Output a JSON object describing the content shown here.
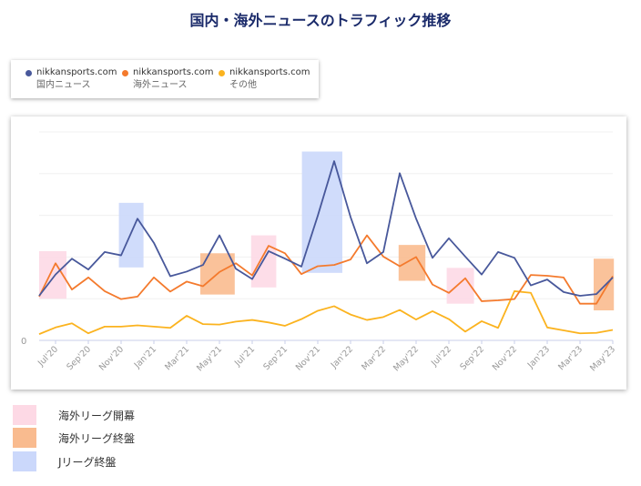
{
  "chart_data": {
    "type": "line",
    "title": "国内・海外ニュースのトラフィック推移",
    "x": [
      "2020-06",
      "2020-07",
      "2020-08",
      "2020-09",
      "2020-10",
      "2020-11",
      "2020-12",
      "2021-01",
      "2021-02",
      "2021-03",
      "2021-04",
      "2021-05",
      "2021-06",
      "2021-07",
      "2021-08",
      "2021-09",
      "2021-10",
      "2021-11",
      "2021-12",
      "2022-01",
      "2022-02",
      "2022-03",
      "2022-04",
      "2022-05",
      "2022-06",
      "2022-07",
      "2022-08",
      "2022-09",
      "2022-10",
      "2022-11",
      "2022-12",
      "2023-01",
      "2023-02",
      "2023-03",
      "2023-04",
      "2023-05"
    ],
    "tick_labels": [
      "Jul'20",
      "Sep'20",
      "Nov'20",
      "Jan'21",
      "Mar'21",
      "May'21",
      "Jul'21",
      "Sep'21",
      "Nov'21",
      "Jan'22",
      "Mar'22",
      "May'22",
      "Jul'22",
      "Sep'22",
      "Nov'22",
      "Jan'23",
      "Mar'23",
      "May'23"
    ],
    "y_tick_labels": [
      "0"
    ],
    "ylim": [
      0,
      5
    ],
    "grid": true,
    "series": [
      {
        "name": "nikkansports.com",
        "subname": "国内ニュース",
        "color": "#48589b",
        "values": [
          1.07,
          1.58,
          1.96,
          1.7,
          2.12,
          2.04,
          2.92,
          2.34,
          1.54,
          1.65,
          1.81,
          2.52,
          1.72,
          1.47,
          2.14,
          1.96,
          1.77,
          2.99,
          4.3,
          2.96,
          1.85,
          2.12,
          4.01,
          2.92,
          1.98,
          2.45,
          2.01,
          1.58,
          2.12,
          1.98,
          1.32,
          1.46,
          1.16,
          1.07,
          1.11,
          1.51
        ]
      },
      {
        "name": "nikkansports.com",
        "subname": "海外ニュース",
        "color": "#f47a2d",
        "values": [
          1.05,
          1.85,
          1.22,
          1.51,
          1.18,
          0.99,
          1.05,
          1.51,
          1.17,
          1.41,
          1.3,
          1.64,
          1.85,
          1.56,
          2.27,
          2.09,
          1.59,
          1.78,
          1.81,
          1.94,
          2.52,
          2.01,
          1.78,
          2.0,
          1.34,
          1.14,
          1.49,
          0.94,
          0.96,
          0.99,
          1.57,
          1.55,
          1.51,
          0.88,
          0.88,
          1.54
        ]
      },
      {
        "name": "nikkansports.com",
        "subname": "その他",
        "color": "#fbb31f",
        "values": [
          0.15,
          0.31,
          0.41,
          0.17,
          0.33,
          0.33,
          0.36,
          0.33,
          0.3,
          0.59,
          0.39,
          0.38,
          0.45,
          0.49,
          0.43,
          0.35,
          0.51,
          0.71,
          0.82,
          0.62,
          0.49,
          0.56,
          0.73,
          0.5,
          0.7,
          0.51,
          0.21,
          0.46,
          0.3,
          1.18,
          1.14,
          0.31,
          0.24,
          0.17,
          0.18,
          0.25
        ]
      }
    ],
    "bands": [
      {
        "type": 0,
        "start": "2020-06-01",
        "end": "2020-07-21",
        "y": [
          1.0,
          2.14
        ]
      },
      {
        "type": 2,
        "start": "2020-10-27",
        "end": "2020-12-12",
        "y": [
          1.75,
          3.3
        ]
      },
      {
        "type": 1,
        "start": "2021-03-26",
        "end": "2021-05-29",
        "y": [
          1.1,
          2.09
        ]
      },
      {
        "type": 0,
        "start": "2021-06-29",
        "end": "2021-08-15",
        "y": [
          1.27,
          2.52
        ]
      },
      {
        "type": 2,
        "start": "2021-10-02",
        "end": "2021-12-16",
        "y": [
          1.62,
          4.53
        ]
      },
      {
        "type": 1,
        "start": "2022-03-29",
        "end": "2022-05-18",
        "y": [
          1.43,
          2.29
        ]
      },
      {
        "type": 0,
        "start": "2022-06-27",
        "end": "2022-08-17",
        "y": [
          0.88,
          1.74
        ]
      },
      {
        "type": 1,
        "start": "2023-03-26",
        "end": "2023-05-03",
        "y": [
          0.72,
          1.96
        ]
      }
    ],
    "band_legend": [
      {
        "label": "海外リーグ開幕",
        "color": "#fdd9e5"
      },
      {
        "label": "海外リーグ終盤",
        "color": "#f9bb8f"
      },
      {
        "label": "Jリーグ終盤",
        "color": "#cbd8fb"
      }
    ],
    "legend_placement": "top-left"
  }
}
